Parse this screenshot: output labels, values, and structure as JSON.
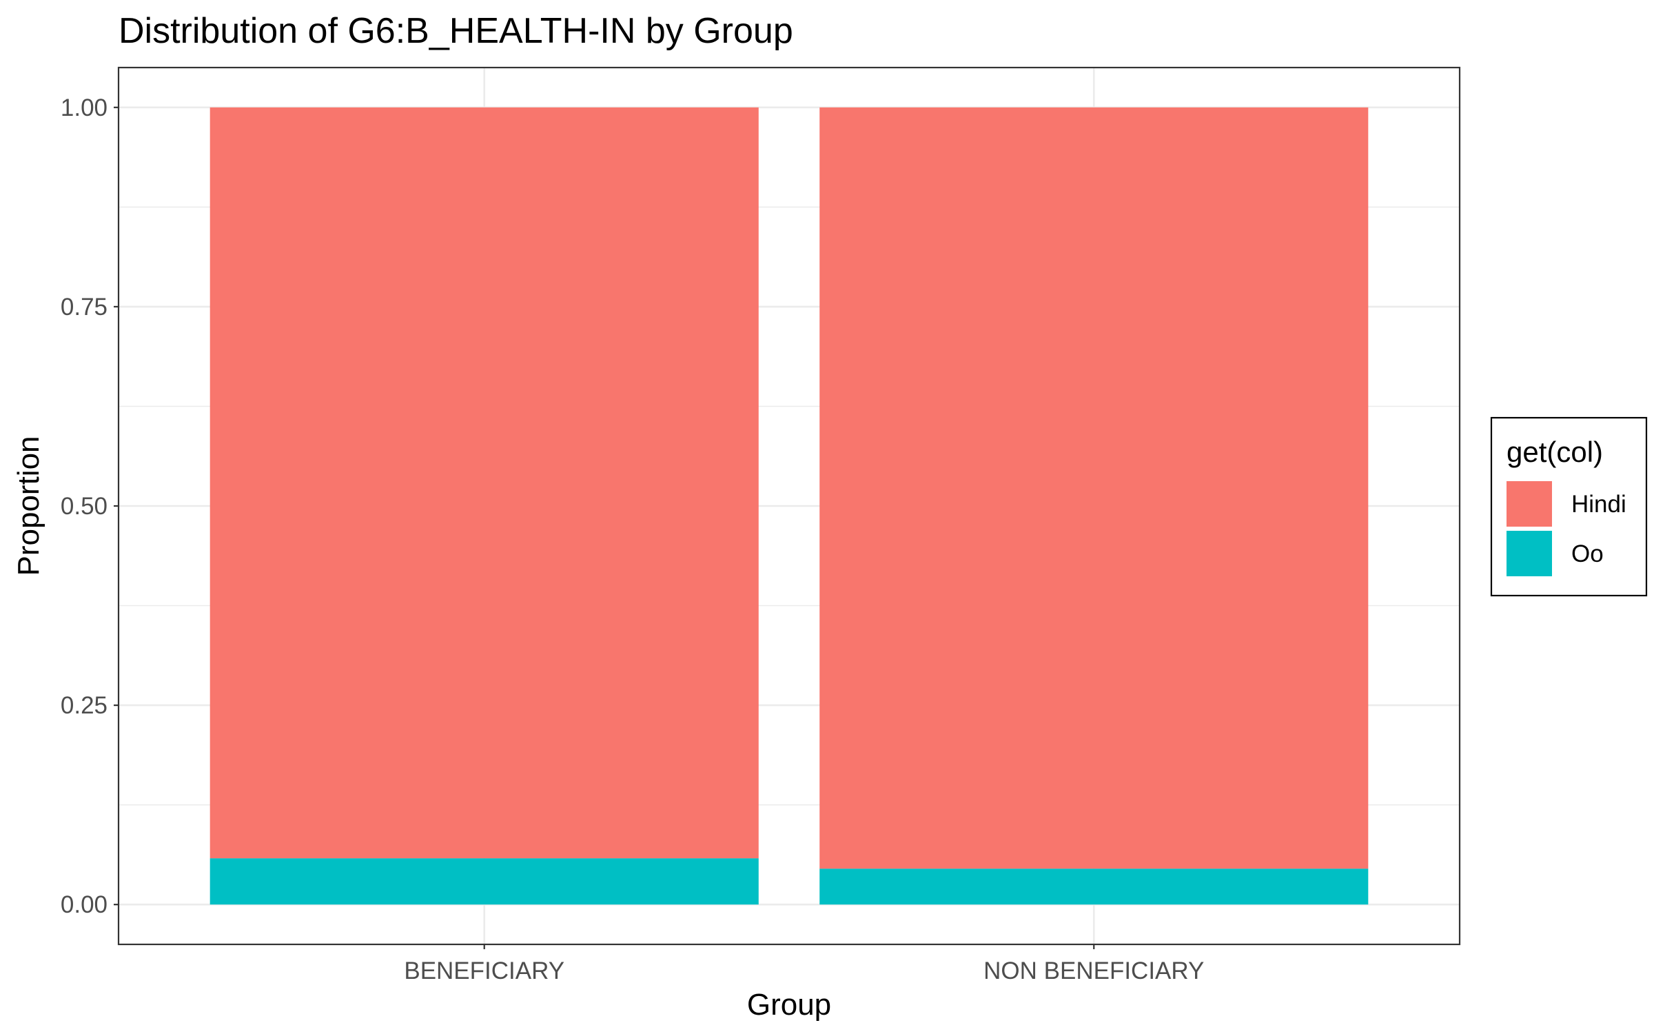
{
  "chart_data": {
    "type": "bar",
    "stacked": true,
    "title": "Distribution of G6:B_HEALTH-IN by Group",
    "xlabel": "Group",
    "ylabel": "Proportion",
    "categories": [
      "BENEFICIARY",
      "NON BENEFICIARY"
    ],
    "series": [
      {
        "name": "Hindi",
        "values": [
          0.942,
          0.955
        ],
        "color": "#F8766D"
      },
      {
        "name": "Oo",
        "values": [
          0.058,
          0.045
        ],
        "color": "#00BFC4"
      }
    ],
    "ylim": [
      -0.05,
      1.05
    ],
    "yticks": [
      0,
      0.25,
      0.5,
      0.75,
      1
    ],
    "ytick_labels": [
      "0.00",
      "0.25",
      "0.50",
      "0.75",
      "1.00"
    ],
    "grid": true,
    "legend": {
      "title": "get(col)",
      "position": "right"
    }
  }
}
